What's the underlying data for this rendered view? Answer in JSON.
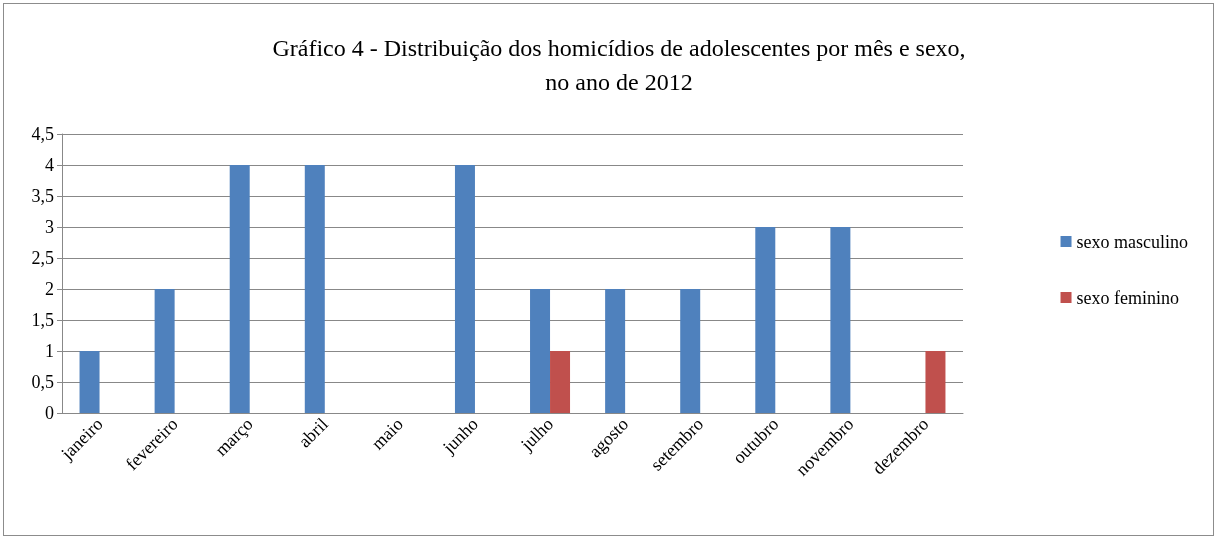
{
  "chart_data": {
    "type": "bar",
    "title": "Gráfico 4 - Distribuição dos homicídios de adolescentes por mês e sexo,\nno ano de 2012",
    "categories": [
      "janeiro",
      "fevereiro",
      "março",
      "abril",
      "maio",
      "junho",
      "julho",
      "agosto",
      "setembro",
      "outubro",
      "novembro",
      "dezembro"
    ],
    "series": [
      {
        "name": "sexo masculino",
        "color": "#4f81bd",
        "values": [
          1,
          2,
          4,
          4,
          0,
          4,
          2,
          2,
          2,
          3,
          3,
          0
        ]
      },
      {
        "name": "sexo feminino",
        "color": "#c0504d",
        "values": [
          0,
          0,
          0,
          0,
          0,
          0,
          1,
          0,
          0,
          0,
          0,
          1
        ]
      }
    ],
    "ylim": [
      0,
      4.5
    ],
    "yticks": [
      0,
      {
        "value": 0.5,
        "label": "0,5"
      },
      1,
      {
        "value": 1.5,
        "label": "1,5"
      },
      2,
      {
        "value": 2.5,
        "label": "2,5"
      },
      3,
      {
        "value": 3.5,
        "label": "3,5"
      },
      4,
      {
        "value": 4.5,
        "label": "4,5"
      }
    ],
    "grid": "y",
    "legend": "right"
  }
}
